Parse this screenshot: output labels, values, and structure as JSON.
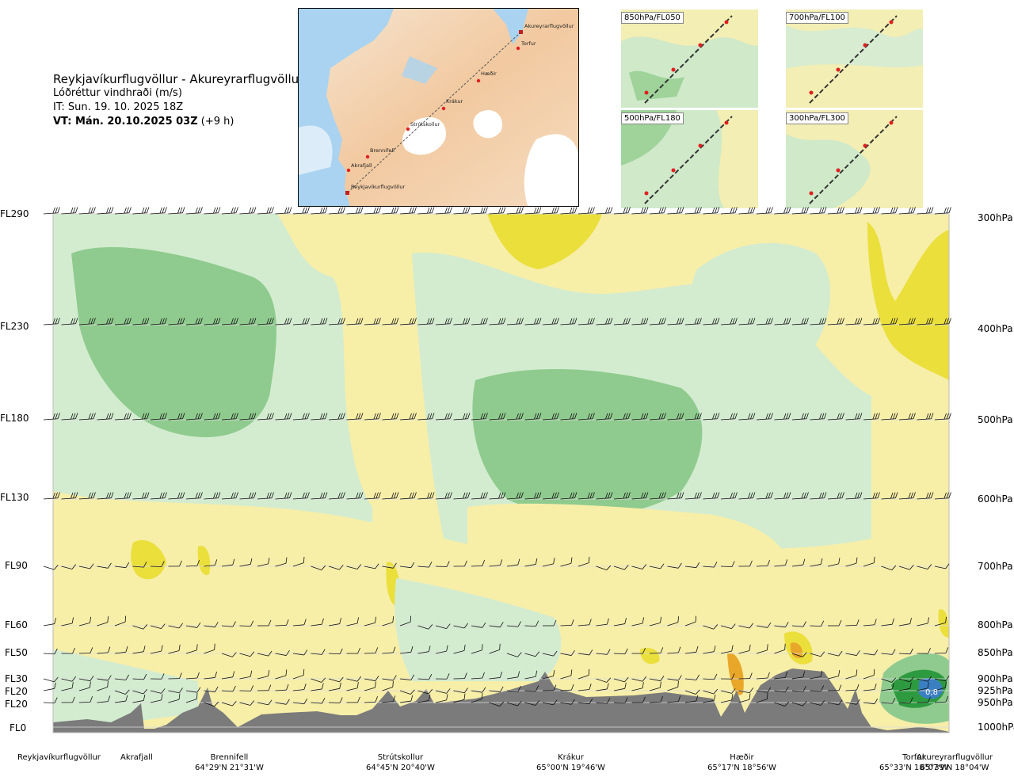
{
  "header": {
    "title": "Reykjavíkurflugvöllur - Akureyrarflugvöllur",
    "subtitle": "Lóðréttur vindhraði (m/s)",
    "issue_time": "IT: Sun. 19. 10. 2025 18Z",
    "valid_time_bold": "VT: Mán. 20.10.2025 03Z",
    "valid_time_rest": " (+9 h)"
  },
  "map": {
    "points": [
      "Akureyrarflugvöllur",
      "Torfur",
      "Hæðir",
      "Krákur",
      "Strútskollur",
      "Brennifell",
      "Akrafjall",
      "Reykjavíkurflugvöllur"
    ]
  },
  "level_maps": [
    {
      "label": "850hPa/FL050"
    },
    {
      "label": "700hPa/FL100"
    },
    {
      "label": "500hPa/FL180"
    },
    {
      "label": "300hPa/FL300"
    }
  ],
  "chart_data": {
    "type": "heatmap",
    "title": "Lóðréttur vindhraði (m/s)",
    "y_axis_left": [
      "FL290",
      "FL230",
      "FL180",
      "FL130",
      "FL90",
      "FL60",
      "FL50",
      "FL30",
      "FL20",
      "FL20",
      "FL0"
    ],
    "y_axis_right": [
      "300hPa",
      "400hPa",
      "500hPa",
      "600hPa",
      "700hPa",
      "800hPa",
      "850hPa",
      "900hPa",
      "925hPa",
      "950hPa",
      "1000hPa"
    ],
    "pressure_levels_hpa": [
      300,
      400,
      500,
      600,
      700,
      800,
      850,
      900,
      925,
      950,
      1000
    ],
    "x_locations": [
      {
        "name": "Reykjavíkurflugvöllur",
        "coord": ""
      },
      {
        "name": "Akrafjall",
        "coord": ""
      },
      {
        "name": "Brennifell",
        "coord": "64°29'N 21°31'W"
      },
      {
        "name": "Strútskollur",
        "coord": "64°45'N 20°40'W"
      },
      {
        "name": "Krákur",
        "coord": "65°00'N 19°46'W"
      },
      {
        "name": "Hæðir",
        "coord": "65°17'N 18°56'W"
      },
      {
        "name": "Torfur",
        "coord": "65°33'N 18°07'W"
      },
      {
        "name": "Akureyrarflugvöllur",
        "coord": "65°39'N 18°04'W"
      }
    ],
    "annotations": [
      "0,8"
    ],
    "colors": {
      "strong_down": "#2e9a3f",
      "down": "#8fcb8e",
      "weak_down": "#d3ecd0",
      "neutral": "#fdfbe6",
      "weak_up": "#f7eea8",
      "up": "#ebdf3c",
      "strong_up": "#e9a72a",
      "peak_blue": "#3b7fc3",
      "terrain": "#7b7b7b"
    }
  }
}
